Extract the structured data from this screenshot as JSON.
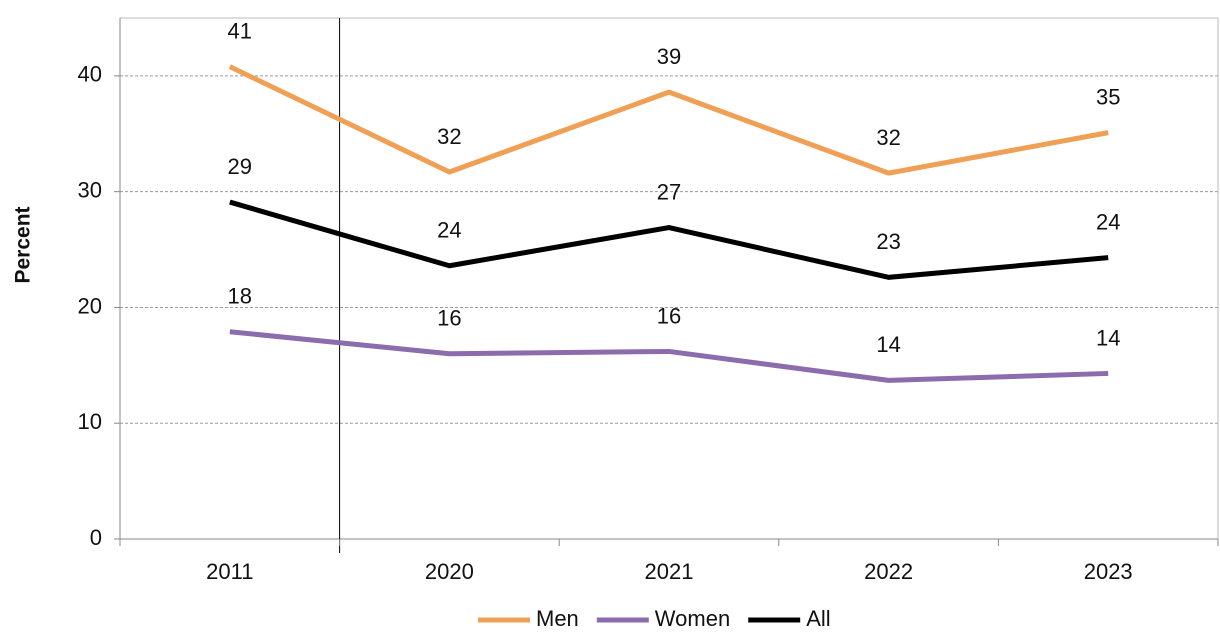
{
  "chart_data": {
    "type": "line",
    "y_label": "Percent",
    "categories": [
      "2011",
      "2020",
      "2021",
      "2022",
      "2023"
    ],
    "series": [
      {
        "name": "Men",
        "color": "#f0a055",
        "values": [
          40.8,
          31.7,
          38.6,
          31.6,
          35.1
        ],
        "value_labels": [
          "41",
          "32",
          "39",
          "32",
          "35"
        ]
      },
      {
        "name": "Women",
        "color": "#8c6cad",
        "values": [
          17.9,
          16.0,
          16.2,
          13.7,
          14.3
        ],
        "value_labels": [
          "18",
          "16",
          "16",
          "14",
          "14"
        ]
      },
      {
        "name": "All",
        "color": "#000000",
        "values": [
          29.1,
          23.6,
          26.9,
          22.6,
          24.3
        ],
        "value_labels": [
          "29",
          "24",
          "27",
          "23",
          "24"
        ]
      }
    ],
    "ylim": [
      0,
      45
    ],
    "yticks": [
      0,
      10,
      20,
      30,
      40
    ],
    "grid": true,
    "legend": "bottom"
  }
}
